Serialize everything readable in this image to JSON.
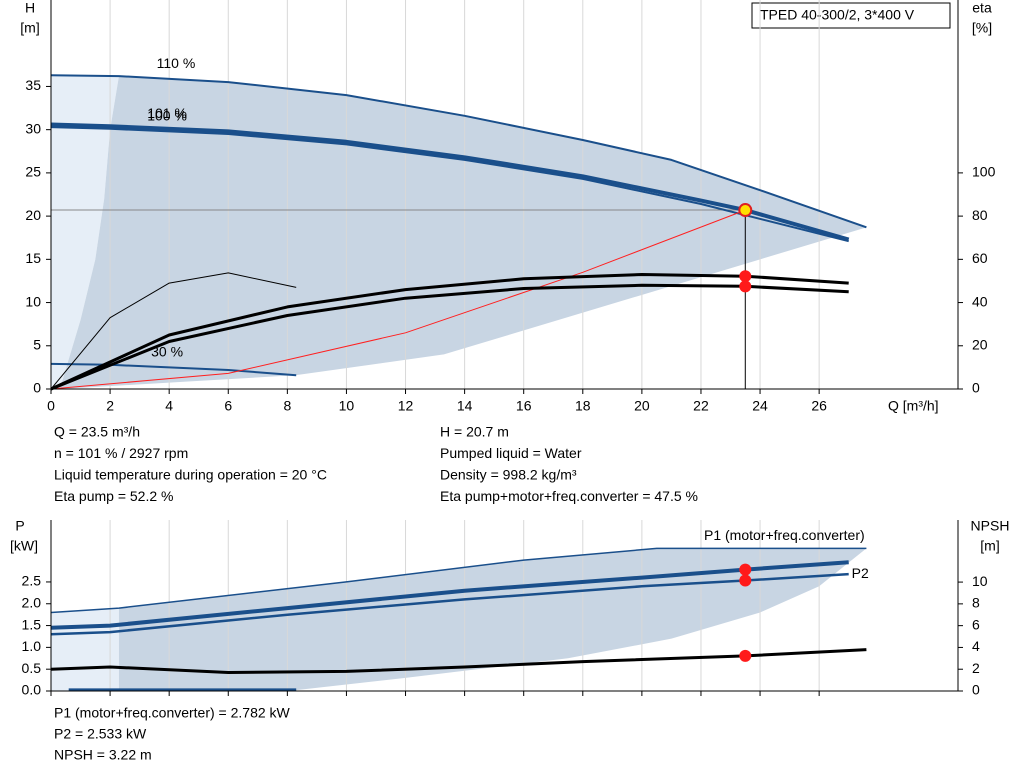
{
  "chart_data": [
    {
      "type": "line",
      "title": "TPED 40-300/2, 3*400 V",
      "y_label": "H",
      "y_unit": "[m]",
      "y2_label": "eta",
      "y2_unit": "[%]",
      "x_label": "Q [m³/h]",
      "xlim": [
        0,
        30.7
      ],
      "xticks": [
        0,
        2,
        4,
        6,
        8,
        10,
        12,
        14,
        16,
        18,
        20,
        22,
        24,
        26
      ],
      "ylim": [
        0,
        45
      ],
      "yticks": [
        0,
        5,
        10,
        15,
        20,
        25,
        30,
        35
      ],
      "y2lim": [
        0,
        180
      ],
      "y2ticks": [
        0,
        20,
        40,
        60,
        80,
        100
      ],
      "grid": "x",
      "regions": [
        {
          "color": "#e6eef7",
          "x": [
            0,
            2.3,
            2.0,
            1.8,
            1.5,
            1.0,
            0.3,
            0
          ],
          "y": [
            36.3,
            36.2,
            30,
            22,
            15,
            8,
            0,
            0
          ]
        },
        {
          "color": "#c8d5e3",
          "x": [
            2.3,
            6,
            10,
            14,
            18,
            21,
            24,
            27.6,
            13.3,
            8.3,
            0.3,
            1.0,
            1.5,
            1.8,
            2.0
          ],
          "y": [
            36.2,
            35.5,
            34,
            31.6,
            28.8,
            26.5,
            23,
            18.7,
            4,
            1.6,
            0,
            8,
            15,
            22,
            30
          ]
        }
      ],
      "series": [
        {
          "name": "110 %",
          "color": "#1a4f8b",
          "width": 2,
          "x": [
            0,
            2.3,
            6,
            10,
            14,
            18,
            21,
            24,
            27.6
          ],
          "values": [
            36.3,
            36.2,
            35.5,
            34,
            31.6,
            28.8,
            26.5,
            23,
            18.7
          ]
        },
        {
          "name": "101 %",
          "color": "#1a4f8b",
          "width": 4,
          "x": [
            0,
            2,
            6,
            10,
            14,
            18,
            22,
            23.5,
            27
          ],
          "values": [
            30.6,
            30.4,
            29.8,
            28.6,
            26.8,
            24.6,
            21.8,
            20.7,
            17.3
          ]
        },
        {
          "name": "100 %",
          "color": "#1a4f8b",
          "width": 2,
          "x": [
            0,
            2,
            6,
            10,
            14,
            18,
            22,
            27
          ],
          "values": [
            30.3,
            30.1,
            29.5,
            28.3,
            26.5,
            24.3,
            21.4,
            17.1
          ]
        },
        {
          "name": "30 %",
          "color": "#1a4f8b",
          "width": 2,
          "x": [
            0,
            2,
            6,
            8.3
          ],
          "values": [
            2.9,
            2.8,
            2.2,
            1.6
          ]
        },
        {
          "color": "#ff2020",
          "width": 1,
          "x": [
            0,
            6,
            12,
            18,
            23.5
          ],
          "values": [
            0,
            1.8,
            6.5,
            13.5,
            20.7
          ]
        },
        {
          "color": "#000000",
          "width": 3,
          "axis": "y2",
          "x": [
            0,
            4,
            8,
            12,
            16,
            20,
            23.5,
            27
          ],
          "values": [
            0,
            25,
            38,
            46,
            51,
            53,
            52.2,
            49
          ]
        },
        {
          "color": "#000000",
          "width": 3,
          "axis": "y2",
          "x": [
            0,
            4,
            8,
            12,
            16,
            20,
            23.5,
            27
          ],
          "values": [
            0,
            22,
            34,
            42,
            46.5,
            48,
            47.5,
            45
          ]
        },
        {
          "color": "#000000",
          "width": 1,
          "axis": "y2",
          "x": [
            0,
            2,
            4,
            6,
            8.3
          ],
          "values": [
            0,
            33,
            49,
            53.7,
            47
          ]
        }
      ],
      "duty_point": {
        "x": 23.5,
        "y": 20.7,
        "color": "#ffe000"
      },
      "markers": [
        {
          "x": 23.5,
          "y": 52.2,
          "axis": "y2",
          "color": "#ff1a1a"
        },
        {
          "x": 23.5,
          "y": 47.5,
          "axis": "y2",
          "color": "#ff1a1a"
        }
      ]
    },
    {
      "type": "line",
      "y_label": "P",
      "y_unit": "[kW]",
      "y2_label": "NPSH",
      "y2_unit": "[m]",
      "xlim": [
        0,
        30.7
      ],
      "xticks": [
        0,
        2,
        4,
        6,
        8,
        10,
        12,
        14,
        16,
        18,
        20,
        22,
        24,
        26
      ],
      "ylim": [
        0,
        3.92
      ],
      "yticks": [
        {
          "value": 0,
          "label": "0.0"
        },
        0.5,
        {
          "value": 1,
          "label": "1.0"
        },
        1.5,
        {
          "value": 2,
          "label": "2.0"
        },
        2.5
      ],
      "y2lim": [
        0,
        15.7
      ],
      "y2ticks": [
        0,
        2,
        4,
        6,
        8,
        10
      ],
      "grid": "x",
      "regions": [
        {
          "color": "#e6eef7",
          "x": [
            0,
            2.3,
            2.3,
            0
          ],
          "y": [
            1.8,
            1.9,
            0,
            0
          ]
        },
        {
          "color": "#c8d5e3",
          "x": [
            2.3,
            10,
            16,
            20.5,
            27.6,
            26,
            24,
            21,
            17.5,
            12,
            8.3,
            2.3
          ],
          "y": [
            1.9,
            2.5,
            3.0,
            3.27,
            3.27,
            2.4,
            1.8,
            1.2,
            0.75,
            0.3,
            0.02,
            0
          ]
        }
      ],
      "series": [
        {
          "name": "P1 (motor+freq.converter)",
          "color": "#1a4f8b",
          "width": 4,
          "x": [
            0,
            2,
            8,
            14,
            20,
            23.5,
            27
          ],
          "values": [
            1.45,
            1.5,
            1.9,
            2.3,
            2.6,
            2.782,
            2.95
          ]
        },
        {
          "name": "P2",
          "color": "#1a4f8b",
          "width": 2.5,
          "x": [
            0,
            2,
            8,
            14,
            20,
            23.5,
            27
          ],
          "values": [
            1.3,
            1.35,
            1.75,
            2.1,
            2.4,
            2.533,
            2.68
          ]
        },
        {
          "color": "#1a4f8b",
          "width": 1.5,
          "x": [
            0,
            2.3,
            10,
            16,
            20.5,
            27.6
          ],
          "values": [
            1.8,
            1.9,
            2.5,
            3.0,
            3.27,
            3.27
          ]
        },
        {
          "color": "#000000",
          "width": 3,
          "axis": "y2",
          "x": [
            0,
            2,
            6,
            10,
            14,
            18,
            23.5,
            27.6
          ],
          "values": [
            2,
            2.2,
            1.7,
            1.8,
            2.2,
            2.7,
            3.22,
            3.8
          ]
        },
        {
          "color": "#1a4f8b",
          "width": 3,
          "axis": "y2",
          "x": [
            0.6,
            8.3
          ],
          "values": [
            0.1,
            0.1
          ]
        }
      ],
      "markers": [
        {
          "x": 23.5,
          "y": 2.782,
          "color": "#ff1a1a"
        },
        {
          "x": 23.5,
          "y": 2.533,
          "color": "#ff1a1a"
        },
        {
          "x": 23.5,
          "y": 3.22,
          "axis": "y2",
          "color": "#ff1a1a"
        }
      ]
    }
  ],
  "duty_info": {
    "left": [
      "Q = 23.5 m³/h",
      "n = 101 % / 2927 rpm",
      "Liquid temperature during operation = 20 °C",
      "Eta pump = 52.2 %"
    ],
    "right": [
      "H = 20.7 m",
      "Pumped liquid = Water",
      "Density = 998.2 kg/m³",
      "Eta pump+motor+freq.converter = 47.5 %"
    ]
  },
  "power_info": [
    "P1 (motor+freq.converter) = 2.782 kW",
    "P2 = 2.533 kW",
    "NPSH = 3.22 m"
  ]
}
